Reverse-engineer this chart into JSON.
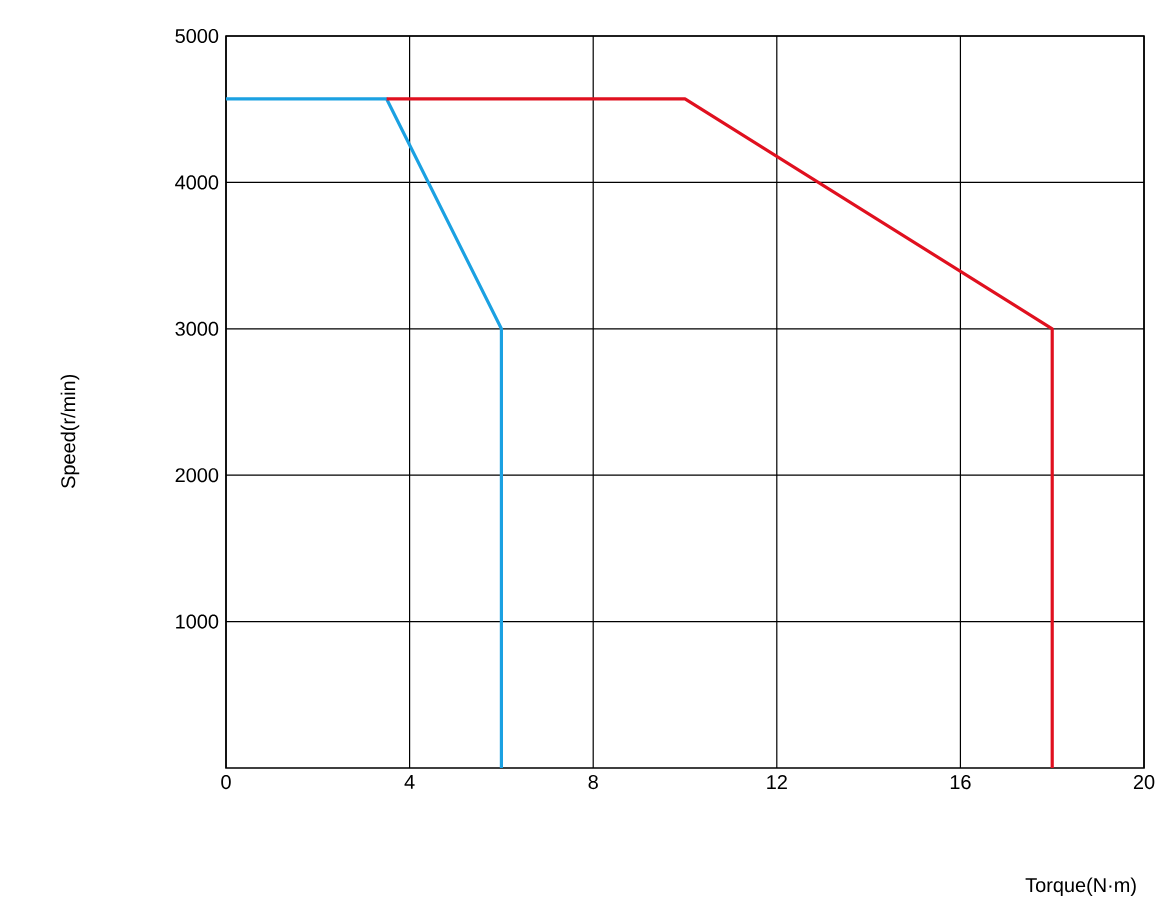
{
  "chart_data": {
    "type": "line",
    "xlabel": "Torque(N·m)",
    "ylabel": "Speed(r/min)",
    "xlim": [
      0,
      20
    ],
    "ylim": [
      0,
      5000
    ],
    "xticks": [
      0,
      4,
      8,
      12,
      16,
      20
    ],
    "yticks": [
      1000,
      2000,
      3000,
      4000,
      5000
    ],
    "grid": true,
    "series": [
      {
        "color": "#1ba1e2",
        "x": [
          0,
          3.5,
          6,
          6
        ],
        "values": [
          4570,
          4570,
          3000,
          0
        ]
      },
      {
        "color": "#e0101f",
        "x": [
          3.5,
          10,
          18,
          18
        ],
        "values": [
          4570,
          4570,
          3000,
          0
        ]
      }
    ]
  }
}
